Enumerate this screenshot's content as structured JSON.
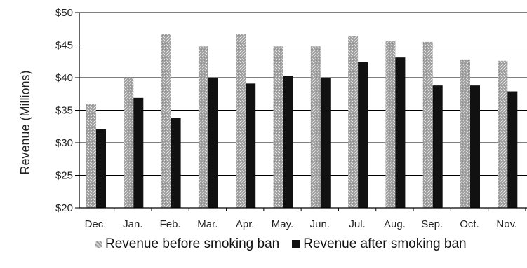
{
  "chart_data": {
    "type": "bar",
    "title": "",
    "xlabel": "",
    "ylabel": "Revenue (Millions)",
    "ylim": [
      20,
      50
    ],
    "yticks": [
      20,
      25,
      30,
      35,
      40,
      45,
      50
    ],
    "ytick_labels": [
      "$20",
      "$25",
      "$30",
      "$35",
      "$40",
      "$45",
      "$50"
    ],
    "categories": [
      "Dec.",
      "Jan.",
      "Feb.",
      "Mar.",
      "Apr.",
      "May.",
      "Jun.",
      "Jul.",
      "Aug.",
      "Sep.",
      "Oct.",
      "Nov."
    ],
    "series": [
      {
        "name": "Revenue before smoking ban",
        "values": [
          36.0,
          40.0,
          46.7,
          44.8,
          46.7,
          44.8,
          44.8,
          46.4,
          45.7,
          45.5,
          42.7,
          42.6
        ]
      },
      {
        "name": "Revenue after smoking ban",
        "values": [
          32.1,
          36.9,
          33.8,
          40.0,
          39.1,
          40.3,
          40.0,
          42.4,
          43.1,
          38.8,
          38.8,
          37.9
        ]
      }
    ],
    "grid": true,
    "legend_position": "bottom"
  },
  "colors": {
    "before": "#a8a8a8",
    "after": "#111111"
  }
}
